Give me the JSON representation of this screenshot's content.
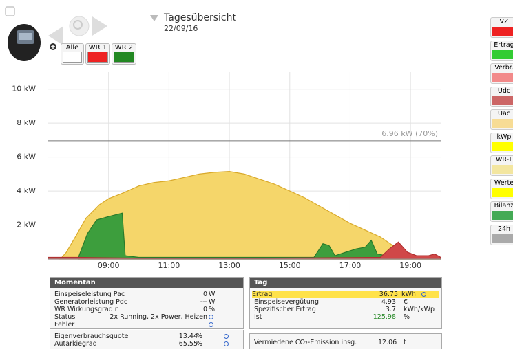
{
  "header": {
    "title": "Tagesübersicht",
    "date": "22/09/16"
  },
  "filters": [
    {
      "label": "Alle",
      "color": "#ffffff"
    },
    {
      "label": "WR 1",
      "color": "#ee2222"
    },
    {
      "label": "WR 2",
      "color": "#228822"
    }
  ],
  "chart": {
    "type": "area",
    "xlim": [
      7,
      20
    ],
    "ylim": [
      0,
      11
    ],
    "xticks": [
      {
        "value": 9,
        "label": "09:00"
      },
      {
        "value": 11,
        "label": "11:00"
      },
      {
        "value": 13,
        "label": "13:00"
      },
      {
        "value": 15,
        "label": "15:00"
      },
      {
        "value": 17,
        "label": "17:00"
      },
      {
        "value": 19,
        "label": "19:00"
      }
    ],
    "yticks": [
      {
        "value": 2,
        "label": "2 kW"
      },
      {
        "value": 4,
        "label": "4 kW"
      },
      {
        "value": 6,
        "label": "6 kW"
      },
      {
        "value": 8,
        "label": "8 kW"
      },
      {
        "value": 10,
        "label": "10 kW"
      }
    ],
    "grid": true,
    "reference": {
      "value": 6.96,
      "label": "6.96 kW (70%)"
    },
    "series": [
      {
        "color": "#f5d66a",
        "edge": "#d9a92a",
        "x": [
          7.4,
          7.6,
          7.9,
          8.25,
          8.7,
          9,
          9.5,
          10,
          10.5,
          11,
          11.5,
          12,
          12.5,
          13,
          13.5,
          14,
          14.5,
          15,
          15.5,
          16,
          16.5,
          17,
          17.5,
          18,
          18.5,
          19,
          19.5,
          20
        ],
        "values": [
          0,
          0.4,
          1.3,
          2.4,
          3.2,
          3.55,
          3.9,
          4.3,
          4.5,
          4.6,
          4.8,
          5.0,
          5.1,
          5.15,
          5.0,
          4.7,
          4.4,
          4.0,
          3.6,
          3.1,
          2.6,
          2.1,
          1.7,
          1.3,
          0.7,
          0.2,
          0.05,
          0
        ]
      },
      {
        "color": "#3d9e3d",
        "edge": "#2a7a2a",
        "x": [
          8.0,
          8.3,
          8.6,
          9.0,
          9.45,
          9.55,
          10,
          12,
          14,
          15.8,
          16.1,
          16.3,
          16.5,
          17.2,
          17.5,
          17.7,
          17.9,
          18.2,
          18.5,
          19,
          20
        ],
        "values": [
          0.1,
          1.5,
          2.3,
          2.5,
          2.7,
          0.2,
          0.1,
          0.1,
          0.1,
          0.1,
          0.9,
          0.8,
          0.2,
          0.6,
          0.7,
          1.1,
          0.3,
          0.2,
          0.1,
          0,
          0
        ]
      },
      {
        "color": "#d04848",
        "edge": "#b03030",
        "x": [
          7,
          8,
          10,
          14,
          18,
          18.3,
          18.6,
          18.9,
          19.2,
          19.6,
          19.8,
          20
        ],
        "values": [
          0.1,
          0.1,
          0.05,
          0.05,
          0.1,
          0.6,
          1.0,
          0.4,
          0.2,
          0.2,
          0.3,
          0.1
        ]
      }
    ]
  },
  "legend": [
    {
      "label": "VZ",
      "color": "#ee2222"
    },
    {
      "label": "Ertrag",
      "color": "#33cc33"
    },
    {
      "label": "Verbr.",
      "color": "#f28a8a"
    },
    {
      "label": "Udc",
      "color": "#cc6666"
    },
    {
      "label": "Uac",
      "color": "#f7dc95"
    },
    {
      "label": "kWp",
      "color": "#ffff00"
    },
    {
      "label": "WR-T",
      "color": "#f3e6a0"
    },
    {
      "label": "Werte",
      "color": "#ffff00"
    },
    {
      "label": "Bilanz",
      "color": "#44aa55"
    },
    {
      "label": "24h",
      "color": "#aaaaaa"
    }
  ],
  "momentan": {
    "title": "Momentan",
    "rows": [
      {
        "label": "Einspeiseleistung Pac",
        "value": "0",
        "unit": "W"
      },
      {
        "label": "Generatorleistung Pdc",
        "value": "---",
        "unit": "W"
      },
      {
        "label": "WR Wirkungsgrad η",
        "value": "0",
        "unit": "%"
      },
      {
        "label": "Status",
        "value": "2x Running, 2x Power, Heizen"
      },
      {
        "label": "Fehler"
      }
    ],
    "quotes": [
      {
        "label": "Eigenverbrauchsquote",
        "value": "13.44",
        "unit": "%"
      },
      {
        "label": "Autarkiegrad",
        "value": "65.55",
        "unit": "%"
      }
    ]
  },
  "tag": {
    "title": "Tag",
    "rows": [
      {
        "label": "Ertrag",
        "value": "36.75",
        "unit": "kWh"
      },
      {
        "label": "Einspeisevergütung",
        "value": "4.93",
        "unit": "€"
      },
      {
        "label": "Spezifischer Ertrag",
        "value": "3.7",
        "unit": "kWh/kWp"
      },
      {
        "label": "Ist",
        "value": "125.98",
        "unit": "%"
      }
    ],
    "co2": {
      "label": "Vermiedene CO₂-Emission insg.",
      "value": "12.06",
      "unit": "t"
    }
  }
}
